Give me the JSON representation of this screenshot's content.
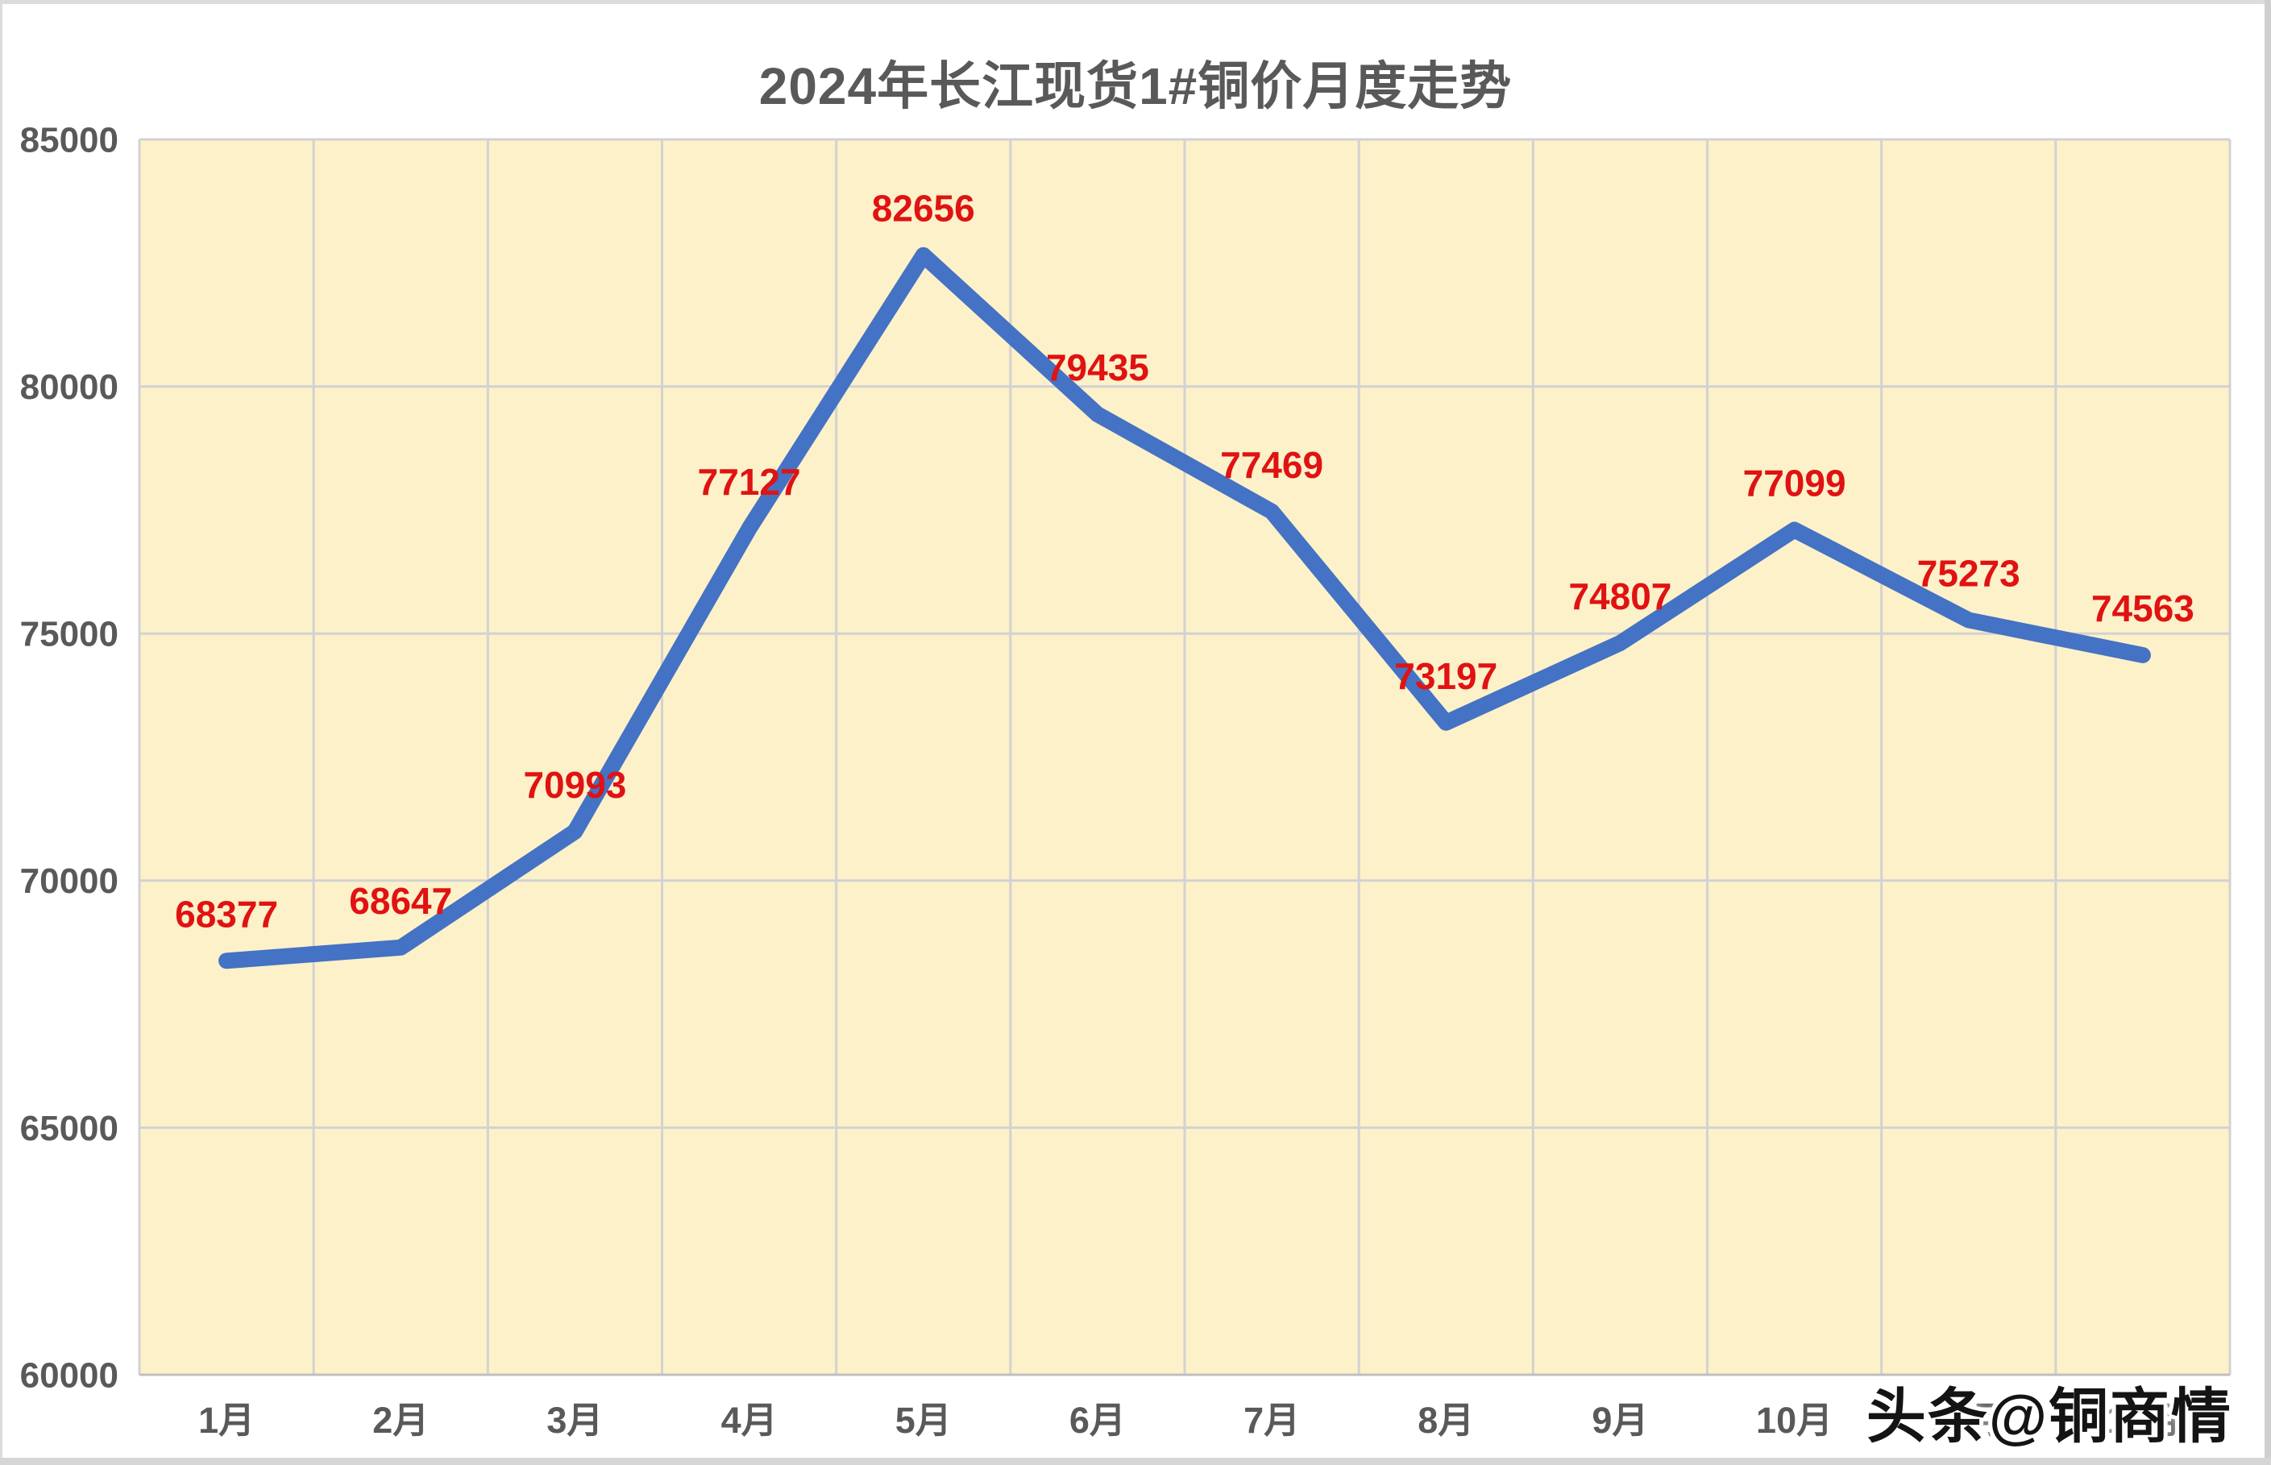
{
  "page": {
    "watermark": "头条@铜商情"
  },
  "chart_data": {
    "type": "line",
    "title": "2024年长江现货1#铜价月度走势",
    "categories": [
      "1月",
      "2月",
      "3月",
      "4月",
      "5月",
      "6月",
      "7月",
      "8月",
      "9月",
      "10月",
      "11月",
      "12月"
    ],
    "values": [
      68377,
      68647,
      70993,
      77127,
      82656,
      79435,
      77469,
      73197,
      74807,
      77099,
      75273,
      74563
    ],
    "data_labels": [
      "68377",
      "68647",
      "70993",
      "77127",
      "82656",
      "79435",
      "77469",
      "73197",
      "74807",
      "77099",
      "75273",
      "74563"
    ],
    "xlabel": "",
    "ylabel": "",
    "ylim": [
      60000,
      85000
    ],
    "ytick_step": 5000,
    "yticks": [
      85000,
      80000,
      75000,
      70000,
      65000,
      60000
    ],
    "grid": true,
    "legend": "none",
    "colors": {
      "line": "#4472C4",
      "data_label": "#E01212",
      "axis_label": "#595959",
      "title": "#595959",
      "plot_background": "#FCF1C9",
      "gridline": "#D2D2D2",
      "axis_line": "#BFBFBF"
    }
  }
}
